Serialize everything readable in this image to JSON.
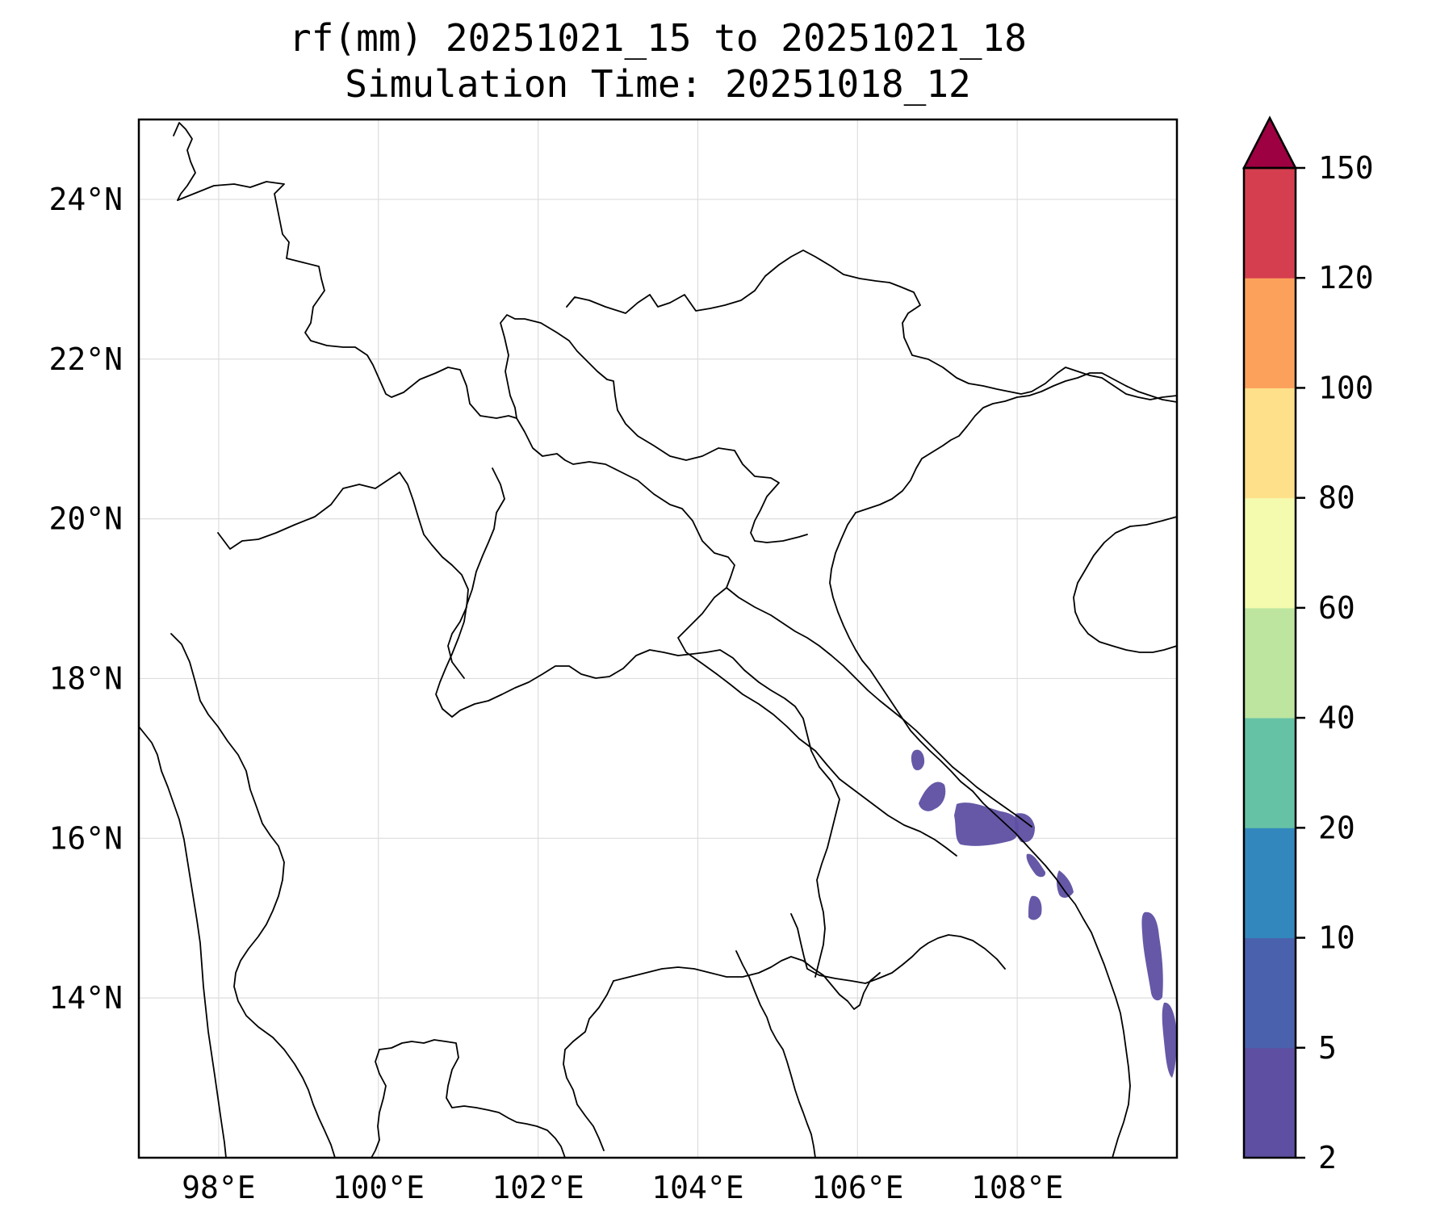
{
  "title": {
    "line1": "rf(mm) 20251021_15 to 20251021_18",
    "line2": "Simulation Time: 20251018_12"
  },
  "map": {
    "lon_range": [
      97.0,
      110.0
    ],
    "lat_range": [
      12.0,
      25.0
    ],
    "lon_ticks": [
      {
        "value": 98,
        "label": "98°E"
      },
      {
        "value": 100,
        "label": "100°E"
      },
      {
        "value": 102,
        "label": "102°E"
      },
      {
        "value": 104,
        "label": "104°E"
      },
      {
        "value": 106,
        "label": "106°E"
      },
      {
        "value": 108,
        "label": "108°E"
      }
    ],
    "lat_ticks": [
      {
        "value": 24,
        "label": "24°N"
      },
      {
        "value": 22,
        "label": "22°N"
      },
      {
        "value": 20,
        "label": "20°N"
      },
      {
        "value": 18,
        "label": "18°N"
      },
      {
        "value": 16,
        "label": "16°N"
      },
      {
        "value": 14,
        "label": "14°N"
      }
    ]
  },
  "colorbar": {
    "levels": [
      "2",
      "5",
      "10",
      "20",
      "40",
      "60",
      "80",
      "100",
      "120",
      "150"
    ],
    "colors": [
      "#5e4fa2",
      "#4a62ad",
      "#3288bd",
      "#66c2a5",
      "#bde5a0",
      "#f4fbaf",
      "#fee08b",
      "#fba15c",
      "#d53e4f"
    ],
    "extend_color": "#9e0142",
    "extend": "max"
  },
  "chart_data": {
    "type": "heatmap",
    "title": "rf(mm) 20251021_15 to 20251021_18",
    "subtitle": "Simulation Time: 20251018_12",
    "xlabel": "",
    "ylabel": "",
    "xlim": [
      97.0,
      110.0
    ],
    "ylim": [
      12.0,
      25.0
    ],
    "variable": "rf(mm)",
    "color_levels": [
      2,
      5,
      10,
      20,
      40,
      60,
      80,
      100,
      120,
      150
    ],
    "rain_areas_2_to_5mm": [
      {
        "lon": 106.73,
        "lat": 16.95
      },
      {
        "lon": 107.0,
        "lat": 16.5
      },
      {
        "lon": 107.6,
        "lat": 16.15
      },
      {
        "lon": 108.08,
        "lat": 15.75
      },
      {
        "lon": 108.38,
        "lat": 15.45
      },
      {
        "lon": 108.05,
        "lat": 15.15
      },
      {
        "lon": 109.72,
        "lat": 14.65
      },
      {
        "lon": 109.9,
        "lat": 13.25
      }
    ]
  }
}
